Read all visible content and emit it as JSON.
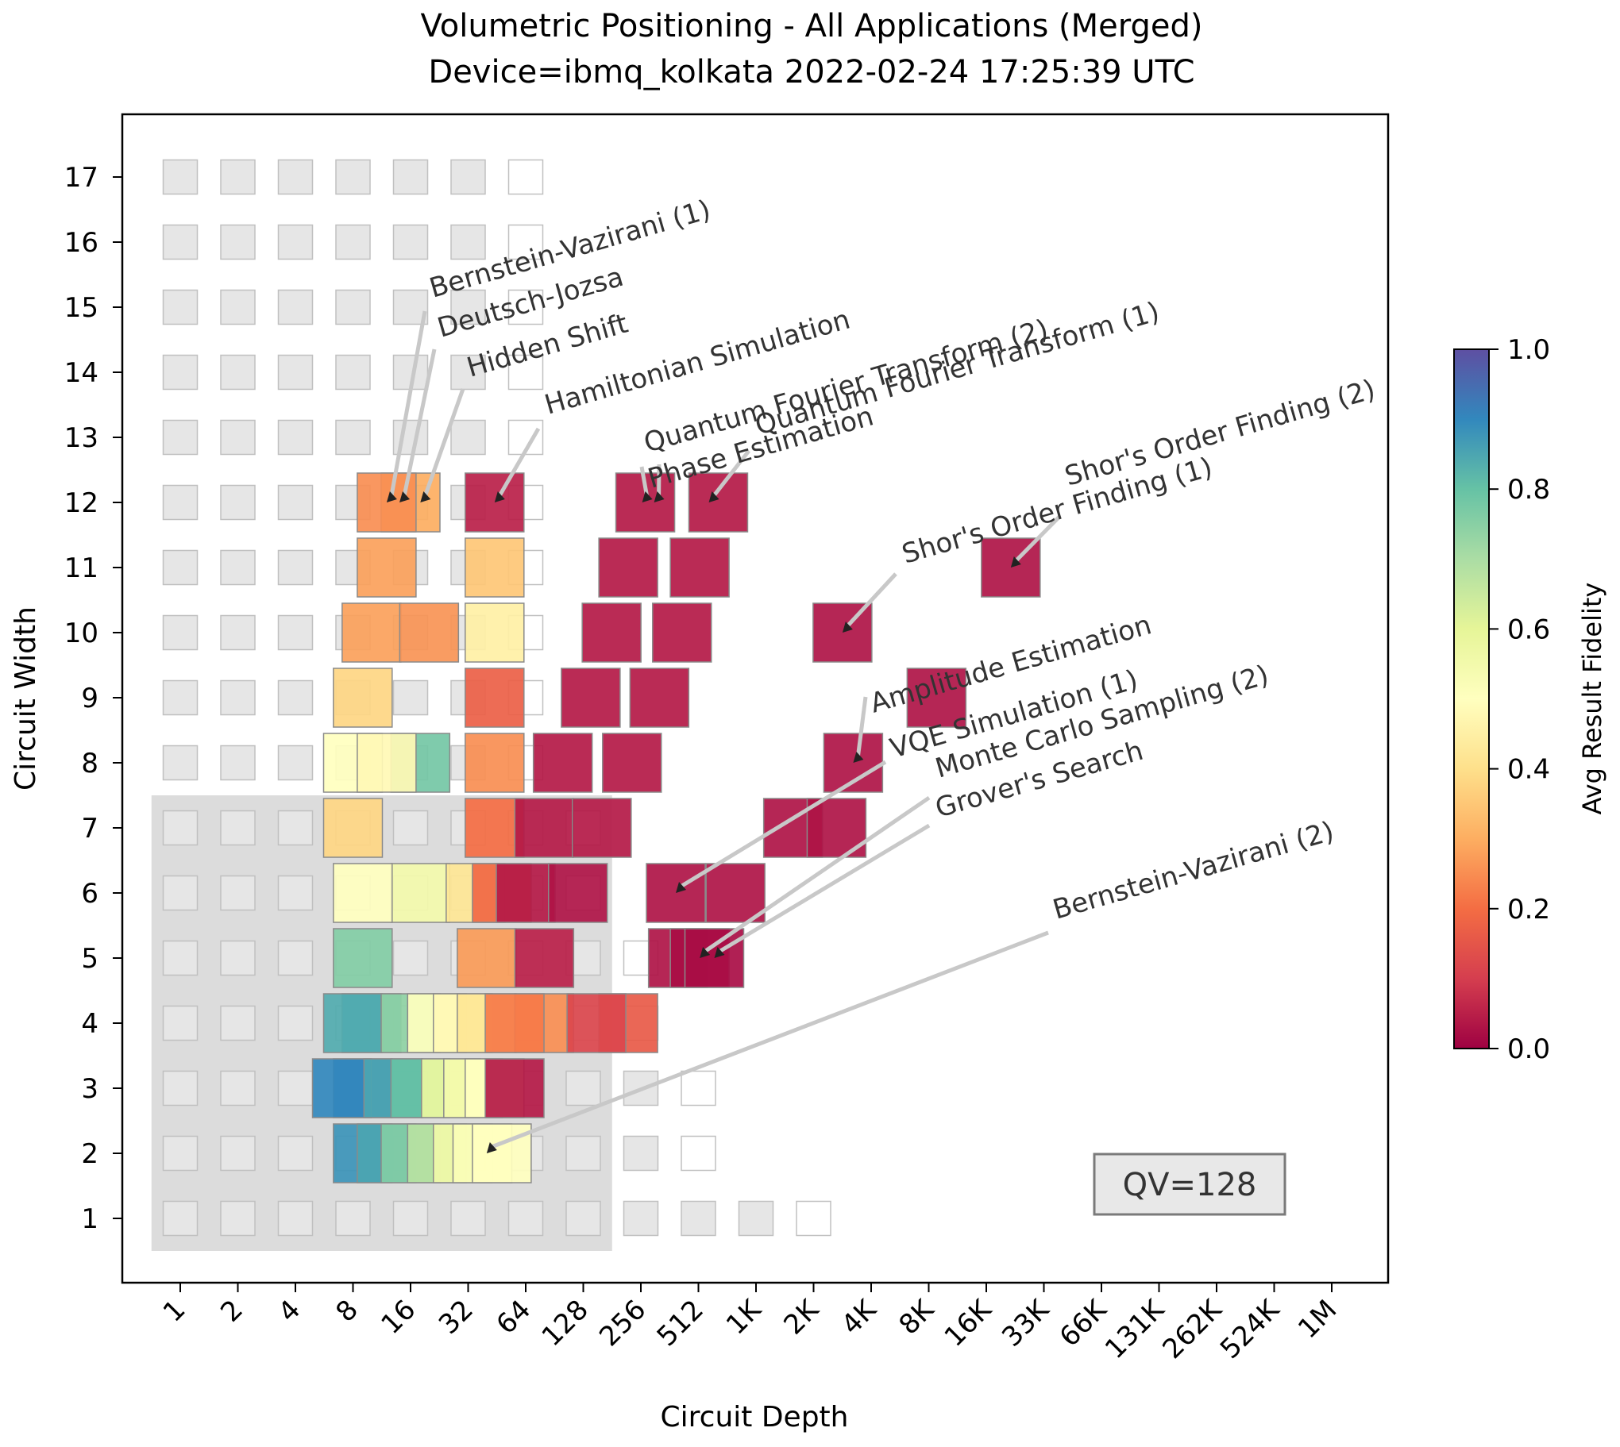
{
  "chart_data": {
    "type": "heatmap",
    "title_line1": "Volumetric Positioning - All Applications (Merged)",
    "title_line2": "Device=ibmq_kolkata  2022-02-24 17:25:39 UTC",
    "xlabel": "Circuit Depth",
    "ylabel": "Circuit Width",
    "x_ticks": [
      "1",
      "2",
      "4",
      "8",
      "16",
      "32",
      "64",
      "128",
      "256",
      "512",
      "1K",
      "2K",
      "4K",
      "8K",
      "16K",
      "33K",
      "66K",
      "131K",
      "262K",
      "524K",
      "1M"
    ],
    "y_ticks": [
      "1",
      "2",
      "3",
      "4",
      "5",
      "6",
      "7",
      "8",
      "9",
      "10",
      "11",
      "12",
      "13",
      "14",
      "15",
      "16",
      "17"
    ],
    "qv_region": {
      "max_depth_log2": 7,
      "max_width": 7
    },
    "qv_label": "QV=128",
    "colorbar": {
      "label": "Avg Result Fidelity",
      "ticks": [
        "0.0",
        "0.2",
        "0.4",
        "0.6",
        "0.8",
        "1.0"
      ],
      "range": [
        0,
        1
      ]
    },
    "background_grid": [
      {
        "width": 1,
        "cols": 12,
        "filled_cols": 11
      },
      {
        "width": 2,
        "cols": 10,
        "filled_cols": 9
      },
      {
        "width": 3,
        "cols": 10,
        "filled_cols": 9
      },
      {
        "width": 4,
        "cols": 9,
        "filled_cols": 8
      },
      {
        "width": 5,
        "cols": 9,
        "filled_cols": 8
      },
      {
        "width": 6,
        "cols": 8,
        "filled_cols": 7
      },
      {
        "width": 7,
        "cols": 8,
        "filled_cols": 7
      },
      {
        "width": 8,
        "cols": 7,
        "filled_cols": 6
      },
      {
        "width": 9,
        "cols": 7,
        "filled_cols": 6
      },
      {
        "width": 10,
        "cols": 7,
        "filled_cols": 6
      },
      {
        "width": 11,
        "cols": 7,
        "filled_cols": 6
      },
      {
        "width": 12,
        "cols": 7,
        "filled_cols": 6
      },
      {
        "width": 13,
        "cols": 7,
        "filled_cols": 6
      },
      {
        "width": 14,
        "cols": 7,
        "filled_cols": 6
      },
      {
        "width": 15,
        "cols": 7,
        "filled_cols": 6
      },
      {
        "width": 16,
        "cols": 7,
        "filled_cols": 6
      },
      {
        "width": 17,
        "cols": 7,
        "filled_cols": 6
      }
    ],
    "circuits": [
      {
        "width": 2,
        "depth": 9,
        "fidelity": 0.88
      },
      {
        "width": 2,
        "depth": 12,
        "fidelity": 0.85
      },
      {
        "width": 2,
        "depth": 16,
        "fidelity": 0.76
      },
      {
        "width": 2,
        "depth": 22,
        "fidelity": 0.68
      },
      {
        "width": 2,
        "depth": 30,
        "fidelity": 0.56
      },
      {
        "width": 2,
        "depth": 38,
        "fidelity": 0.52
      },
      {
        "width": 2,
        "depth": 48,
        "fidelity": 0.5
      },
      {
        "width": 3,
        "depth": 7,
        "fidelity": 0.9
      },
      {
        "width": 3,
        "depth": 9,
        "fidelity": 0.92
      },
      {
        "width": 3,
        "depth": 13,
        "fidelity": 0.85
      },
      {
        "width": 3,
        "depth": 18,
        "fidelity": 0.8
      },
      {
        "width": 3,
        "depth": 26,
        "fidelity": 0.58
      },
      {
        "width": 3,
        "depth": 34,
        "fidelity": 0.55
      },
      {
        "width": 3,
        "depth": 44,
        "fidelity": 0.5
      },
      {
        "width": 3,
        "depth": 56,
        "fidelity": 0.04
      },
      {
        "width": 4,
        "depth": 8,
        "fidelity": 0.84
      },
      {
        "width": 4,
        "depth": 10,
        "fidelity": 0.86
      },
      {
        "width": 4,
        "depth": 16,
        "fidelity": 0.74
      },
      {
        "width": 4,
        "depth": 22,
        "fidelity": 0.5
      },
      {
        "width": 4,
        "depth": 30,
        "fidelity": 0.48
      },
      {
        "width": 4,
        "depth": 40,
        "fidelity": 0.42
      },
      {
        "width": 4,
        "depth": 56,
        "fidelity": 0.22
      },
      {
        "width": 4,
        "depth": 80,
        "fidelity": 0.25
      },
      {
        "width": 4,
        "depth": 150,
        "fidelity": 0.12
      },
      {
        "width": 4,
        "depth": 220,
        "fidelity": 0.16
      },
      {
        "width": 5,
        "depth": 9,
        "fidelity": 0.76
      },
      {
        "width": 5,
        "depth": 40,
        "fidelity": 0.27
      },
      {
        "width": 5,
        "depth": 80,
        "fidelity": 0.05
      },
      {
        "width": 5,
        "depth": 400,
        "fidelity": 0.03
      },
      {
        "width": 5,
        "depth": 520,
        "fidelity": 0.02
      },
      {
        "width": 5,
        "depth": 620,
        "fidelity": 0.02
      },
      {
        "width": 6,
        "depth": 9,
        "fidelity": 0.5
      },
      {
        "width": 6,
        "depth": 18,
        "fidelity": 0.55
      },
      {
        "width": 6,
        "depth": 35,
        "fidelity": 0.42
      },
      {
        "width": 6,
        "depth": 48,
        "fidelity": 0.19
      },
      {
        "width": 6,
        "depth": 64,
        "fidelity": 0.04
      },
      {
        "width": 6,
        "depth": 120,
        "fidelity": 0.03
      },
      {
        "width": 6,
        "depth": 390,
        "fidelity": 0.03
      },
      {
        "width": 6,
        "depth": 800,
        "fidelity": 0.03
      },
      {
        "width": 7,
        "depth": 8,
        "fidelity": 0.38
      },
      {
        "width": 7,
        "depth": 44,
        "fidelity": 0.2
      },
      {
        "width": 7,
        "depth": 80,
        "fidelity": 0.04
      },
      {
        "width": 7,
        "depth": 160,
        "fidelity": 0.04
      },
      {
        "width": 7,
        "depth": 1600,
        "fidelity": 0.03
      },
      {
        "width": 7,
        "depth": 2700,
        "fidelity": 0.03
      },
      {
        "width": 8,
        "depth": 8,
        "fidelity": 0.5
      },
      {
        "width": 8,
        "depth": 12,
        "fidelity": 0.48
      },
      {
        "width": 8,
        "depth": 18,
        "fidelity": 0.78
      },
      {
        "width": 8,
        "depth": 44,
        "fidelity": 0.25
      },
      {
        "width": 8,
        "depth": 100,
        "fidelity": 0.04
      },
      {
        "width": 8,
        "depth": 230,
        "fidelity": 0.04
      },
      {
        "width": 8,
        "depth": 3300,
        "fidelity": 0.03
      },
      {
        "width": 9,
        "depth": 9,
        "fidelity": 0.38
      },
      {
        "width": 9,
        "depth": 44,
        "fidelity": 0.17
      },
      {
        "width": 9,
        "depth": 140,
        "fidelity": 0.04
      },
      {
        "width": 9,
        "depth": 320,
        "fidelity": 0.04
      },
      {
        "width": 9,
        "depth": 9000,
        "fidelity": 0.03
      },
      {
        "width": 10,
        "depth": 10,
        "fidelity": 0.28
      },
      {
        "width": 10,
        "depth": 20,
        "fidelity": 0.26
      },
      {
        "width": 10,
        "depth": 44,
        "fidelity": 0.45
      },
      {
        "width": 10,
        "depth": 180,
        "fidelity": 0.04
      },
      {
        "width": 10,
        "depth": 420,
        "fidelity": 0.04
      },
      {
        "width": 10,
        "depth": 2900,
        "fidelity": 0.03
      },
      {
        "width": 11,
        "depth": 12,
        "fidelity": 0.28
      },
      {
        "width": 11,
        "depth": 44,
        "fidelity": 0.35
      },
      {
        "width": 11,
        "depth": 220,
        "fidelity": 0.04
      },
      {
        "width": 11,
        "depth": 520,
        "fidelity": 0.04
      },
      {
        "width": 11,
        "depth": 22000,
        "fidelity": 0.03
      },
      {
        "width": 12,
        "depth": 12,
        "fidelity": 0.25
      },
      {
        "width": 12,
        "depth": 16,
        "fidelity": 0.3
      },
      {
        "width": 12,
        "depth": 44,
        "fidelity": 0.05
      },
      {
        "width": 12,
        "depth": 270,
        "fidelity": 0.04
      },
      {
        "width": 12,
        "depth": 650,
        "fidelity": 0.04
      }
    ],
    "annotations": [
      {
        "text": "Bernstein-Vazirani (1)",
        "target_depth": 12,
        "target_width": 12
      },
      {
        "text": "Deutsch-Jozsa",
        "target_depth": 14,
        "target_width": 12
      },
      {
        "text": "Hidden Shift",
        "target_depth": 18,
        "target_width": 12
      },
      {
        "text": "Hamiltonian Simulation",
        "target_depth": 44,
        "target_width": 12
      },
      {
        "text": "Quantum Fourier Transform (2)",
        "target_depth": 260,
        "target_width": 12
      },
      {
        "text": "Quantum Fourier Transform (1)",
        "target_depth": 580,
        "target_width": 12
      },
      {
        "text": "Phase Estimation",
        "target_depth": 300,
        "target_width": 12
      },
      {
        "text": "Shor's Order Finding (2)",
        "target_depth": 22000,
        "target_width": 11
      },
      {
        "text": "Shor's Order Finding (1)",
        "target_depth": 2900,
        "target_width": 10
      },
      {
        "text": "Amplitude Estimation",
        "target_depth": 3300,
        "target_width": 8
      },
      {
        "text": "VQE Simulation (1)",
        "target_depth": 390,
        "target_width": 6
      },
      {
        "text": "Monte Carlo Sampling (2)",
        "target_depth": 520,
        "target_width": 5
      },
      {
        "text": "Grover's Search",
        "target_depth": 620,
        "target_width": 5
      },
      {
        "text": "Bernstein-Vazirani (2)",
        "target_depth": 40,
        "target_width": 2
      }
    ]
  }
}
